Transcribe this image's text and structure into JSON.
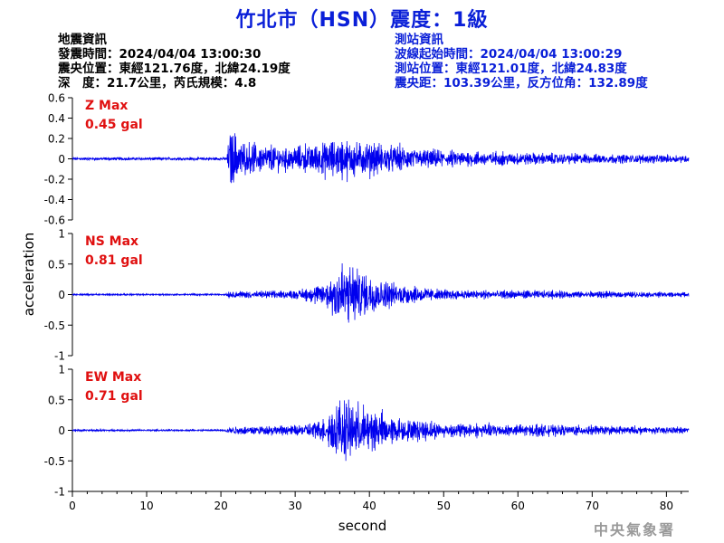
{
  "title": "竹北市（HSN）震度：1級",
  "quake_info": {
    "heading": "地震資訊",
    "origin_time": "發震時間：2024/04/04 13:00:30",
    "epicenter": "震央位置：東經121.76度，北緯24.19度",
    "depth_magnitude": "深　度：21.7公里，芮氏規模：4.8"
  },
  "station_info": {
    "heading": "測站資訊",
    "wave_start_time": "波線起始時間：2024/04/04 13:00:29",
    "station_location": "測站位置：東經121.01度，北緯24.83度",
    "distance_azimuth": "震央距：103.39公里，反方位角：132.89度"
  },
  "agency": "中央氣象署",
  "colors": {
    "title": "#0a1fd8",
    "trace": "#0000ee",
    "max_label": "#e01010",
    "axis": "#000000"
  },
  "chart_data": {
    "type": "line",
    "xlabel": "second",
    "ylabel": "acceleration",
    "xlim": [
      0,
      83
    ],
    "x_ticks": [
      "0",
      "10",
      "20",
      "30",
      "40",
      "50",
      "60",
      "70",
      "80"
    ],
    "grid": false,
    "panels": [
      {
        "component": "Z",
        "max_label": "Z Max",
        "max_value": "0.45 gal",
        "ylim": [
          -0.6,
          0.6
        ],
        "y_ticks": [
          "0.6",
          "0.4",
          "0.2",
          "0",
          "-0.2",
          "-0.4",
          "-0.6"
        ],
        "series": {
          "noise": 0.01,
          "segments": [
            {
              "t": 0,
              "amp": 0.01
            },
            {
              "t": 20.8,
              "amp": 0.01
            },
            {
              "t": 21.2,
              "amp": 0.42
            },
            {
              "t": 23,
              "amp": 0.2
            },
            {
              "t": 30,
              "amp": 0.15
            },
            {
              "t": 36,
              "amp": 0.24
            },
            {
              "t": 41,
              "amp": 0.2
            },
            {
              "t": 48,
              "amp": 0.11
            },
            {
              "t": 60,
              "amp": 0.07
            },
            {
              "t": 83,
              "amp": 0.04
            }
          ]
        }
      },
      {
        "component": "NS",
        "max_label": "NS Max",
        "max_value": "0.81 gal",
        "ylim": [
          -1,
          1
        ],
        "y_ticks": [
          "1",
          "0.5",
          "0",
          "-0.5",
          "-1"
        ],
        "series": {
          "noise": 0.01,
          "segments": [
            {
              "t": 0,
              "amp": 0.01
            },
            {
              "t": 20.5,
              "amp": 0.01
            },
            {
              "t": 21,
              "amp": 0.06
            },
            {
              "t": 30,
              "amp": 0.08
            },
            {
              "t": 34,
              "amp": 0.25
            },
            {
              "t": 36,
              "amp": 0.78
            },
            {
              "t": 40,
              "amp": 0.45
            },
            {
              "t": 43,
              "amp": 0.25
            },
            {
              "t": 50,
              "amp": 0.1
            },
            {
              "t": 83,
              "amp": 0.04
            }
          ]
        }
      },
      {
        "component": "EW",
        "max_label": "EW Max",
        "max_value": "0.71 gal",
        "ylim": [
          -1,
          1
        ],
        "y_ticks": [
          "1",
          "0.5",
          "0",
          "-0.5",
          "-1"
        ],
        "series": {
          "noise": 0.01,
          "segments": [
            {
              "t": 0,
              "amp": 0.01
            },
            {
              "t": 20.5,
              "amp": 0.01
            },
            {
              "t": 21,
              "amp": 0.08
            },
            {
              "t": 30,
              "amp": 0.1
            },
            {
              "t": 34,
              "amp": 0.25
            },
            {
              "t": 36,
              "amp": 0.7
            },
            {
              "t": 40,
              "amp": 0.5
            },
            {
              "t": 43,
              "amp": 0.28
            },
            {
              "t": 50,
              "amp": 0.15
            },
            {
              "t": 83,
              "amp": 0.06
            }
          ]
        }
      }
    ]
  }
}
